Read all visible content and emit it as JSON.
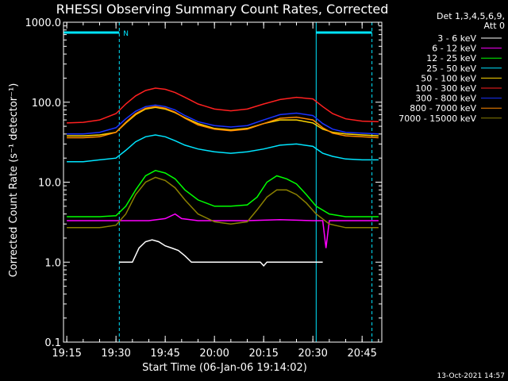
{
  "colors": {
    "background": "#000000",
    "foreground": "#ffffff",
    "flag": "#00e5ff",
    "separator": "#00e5ff"
  },
  "chart_data": {
    "type": "line",
    "title": "RHESSI Observing Summary Count Rates, Corrected",
    "xlabel": "Start Time (06-Jan-06 19:14:02)",
    "ylabel": "Corrected Count Rate (s⁻¹ detector⁻¹)",
    "xlim": [
      "19:14",
      "20:51"
    ],
    "ylim": [
      0.1,
      1000
    ],
    "yscale": "log",
    "xticks": [
      "19:15",
      "19:30",
      "19:45",
      "20:00",
      "20:15",
      "20:30",
      "20:45"
    ],
    "yticks": [
      "0.1",
      "1.0",
      "10.0",
      "100.0",
      "1000.0"
    ],
    "legend_header": [
      "Det 1,3,4,5,6,9,",
      "Att 0"
    ],
    "legend_position": "top-right",
    "footer": "13-Oct-2021 14:57",
    "flag_label": "N",
    "separators": [
      "19:14",
      "19:31",
      "20:31",
      "20:48"
    ],
    "flag_intervals": [
      [
        "19:14",
        "19:31"
      ],
      [
        "20:31",
        "20:48"
      ]
    ],
    "series": [
      {
        "name": "3 - 6 keV",
        "color": "#ffffff",
        "x": [
          "19:31",
          "19:35",
          "19:37",
          "19:39",
          "19:41",
          "19:43",
          "19:45",
          "19:47",
          "19:49",
          "19:51",
          "19:53",
          "20:14",
          "20:15",
          "20:16",
          "20:20",
          "20:25",
          "20:30",
          "20:33"
        ],
        "y": [
          1.0,
          1.0,
          1.5,
          1.8,
          1.9,
          1.8,
          1.6,
          1.5,
          1.4,
          1.2,
          1.0,
          1.0,
          0.9,
          1.0,
          1.0,
          1.0,
          1.0,
          1.0
        ]
      },
      {
        "name": "6 - 12 keV",
        "color": "#ff00ff",
        "x": [
          "19:15",
          "19:30",
          "19:35",
          "19:40",
          "19:45",
          "19:48",
          "19:50",
          "19:55",
          "20:00",
          "20:10",
          "20:20",
          "20:30",
          "20:33",
          "20:34",
          "20:35",
          "20:37",
          "20:50"
        ],
        "y": [
          3.3,
          3.3,
          3.3,
          3.3,
          3.5,
          4.0,
          3.5,
          3.3,
          3.3,
          3.3,
          3.4,
          3.3,
          3.3,
          1.5,
          3.3,
          3.3,
          3.3
        ]
      },
      {
        "name": "12 - 25 keV",
        "color": "#00ff00",
        "x": [
          "19:15",
          "19:25",
          "19:30",
          "19:33",
          "19:36",
          "19:39",
          "19:42",
          "19:45",
          "19:48",
          "19:51",
          "19:55",
          "20:00",
          "20:05",
          "20:10",
          "20:13",
          "20:16",
          "20:19",
          "20:22",
          "20:25",
          "20:28",
          "20:31",
          "20:35",
          "20:40",
          "20:45",
          "20:50"
        ],
        "y": [
          3.7,
          3.7,
          3.8,
          5.0,
          8.0,
          12.0,
          14.0,
          13.0,
          11.0,
          8.0,
          6.0,
          5.0,
          5.0,
          5.2,
          6.5,
          10.0,
          12.0,
          11.0,
          9.5,
          7.0,
          5.0,
          4.0,
          3.7,
          3.7,
          3.7
        ]
      },
      {
        "name": "25 - 50 keV",
        "color": "#00e5ff",
        "x": [
          "19:15",
          "19:20",
          "19:25",
          "19:30",
          "19:33",
          "19:36",
          "19:39",
          "19:42",
          "19:45",
          "19:48",
          "19:51",
          "19:55",
          "20:00",
          "20:05",
          "20:10",
          "20:15",
          "20:20",
          "20:25",
          "20:30",
          "20:33",
          "20:36",
          "20:40",
          "20:45",
          "20:50"
        ],
        "y": [
          18,
          18,
          19,
          20,
          25,
          32,
          37,
          39,
          37,
          33,
          29,
          26,
          24,
          23,
          24,
          26,
          29,
          30,
          28,
          23,
          21,
          19.5,
          19,
          19
        ]
      },
      {
        "name": "50 - 100 keV",
        "color": "#ffd700",
        "x": [
          "19:15",
          "19:20",
          "19:25",
          "19:30",
          "19:33",
          "19:36",
          "19:39",
          "19:42",
          "19:45",
          "19:48",
          "19:51",
          "19:55",
          "20:00",
          "20:05",
          "20:10",
          "20:15",
          "20:20",
          "20:25",
          "20:30",
          "20:33",
          "20:36",
          "20:40",
          "20:45",
          "20:50"
        ],
        "y": [
          38,
          38,
          39,
          42,
          55,
          70,
          82,
          86,
          82,
          74,
          64,
          54,
          47,
          45,
          47,
          54,
          60,
          60,
          55,
          46,
          42,
          40,
          39,
          38
        ]
      },
      {
        "name": "100 - 300 keV",
        "color": "#ff2020",
        "x": [
          "19:15",
          "19:20",
          "19:25",
          "19:30",
          "19:33",
          "19:36",
          "19:39",
          "19:42",
          "19:45",
          "19:48",
          "19:51",
          "19:55",
          "20:00",
          "20:05",
          "20:10",
          "20:15",
          "20:20",
          "20:25",
          "20:30",
          "20:33",
          "20:36",
          "20:40",
          "20:45",
          "20:50"
        ],
        "y": [
          55,
          56,
          60,
          72,
          95,
          120,
          140,
          150,
          145,
          132,
          115,
          95,
          82,
          78,
          82,
          95,
          108,
          115,
          110,
          88,
          72,
          62,
          58,
          57
        ]
      },
      {
        "name": "300 - 800 keV",
        "color": "#1a33ff",
        "x": [
          "19:15",
          "19:20",
          "19:25",
          "19:30",
          "19:33",
          "19:36",
          "19:39",
          "19:42",
          "19:45",
          "19:48",
          "19:51",
          "19:55",
          "20:00",
          "20:05",
          "20:10",
          "20:15",
          "20:20",
          "20:25",
          "20:30",
          "20:33",
          "20:36",
          "20:40",
          "20:45",
          "20:50"
        ],
        "y": [
          40,
          40,
          42,
          48,
          62,
          77,
          88,
          92,
          88,
          80,
          68,
          57,
          51,
          49,
          51,
          60,
          70,
          73,
          68,
          54,
          46,
          42,
          41,
          40
        ]
      },
      {
        "name": "800 - 7000 keV",
        "color": "#ff8800",
        "x": [
          "19:15",
          "19:20",
          "19:25",
          "19:30",
          "19:33",
          "19:36",
          "19:39",
          "19:42",
          "19:45",
          "19:48",
          "19:51",
          "19:55",
          "20:00",
          "20:05",
          "20:10",
          "20:15",
          "20:20",
          "20:25",
          "20:30",
          "20:33",
          "20:36",
          "20:40",
          "20:45",
          "20:50"
        ],
        "y": [
          36,
          36,
          37,
          42,
          56,
          72,
          84,
          88,
          84,
          75,
          63,
          52,
          46,
          44,
          46,
          54,
          63,
          65,
          60,
          48,
          41,
          38,
          37,
          36
        ]
      },
      {
        "name": "7000 - 15000 keV",
        "color": "#8b8000",
        "x": [
          "19:15",
          "19:25",
          "19:30",
          "19:33",
          "19:36",
          "19:39",
          "19:42",
          "19:45",
          "19:48",
          "19:51",
          "19:55",
          "20:00",
          "20:05",
          "20:10",
          "20:13",
          "20:16",
          "20:19",
          "20:22",
          "20:25",
          "20:28",
          "20:31",
          "20:35",
          "20:40",
          "20:45",
          "20:50"
        ],
        "y": [
          2.7,
          2.7,
          2.9,
          4.0,
          7.0,
          10.0,
          11.5,
          10.5,
          8.5,
          6.0,
          4.0,
          3.2,
          3.0,
          3.2,
          4.5,
          6.5,
          8.0,
          8.0,
          7.0,
          5.5,
          4.0,
          3.0,
          2.7,
          2.7,
          2.7
        ]
      }
    ]
  }
}
